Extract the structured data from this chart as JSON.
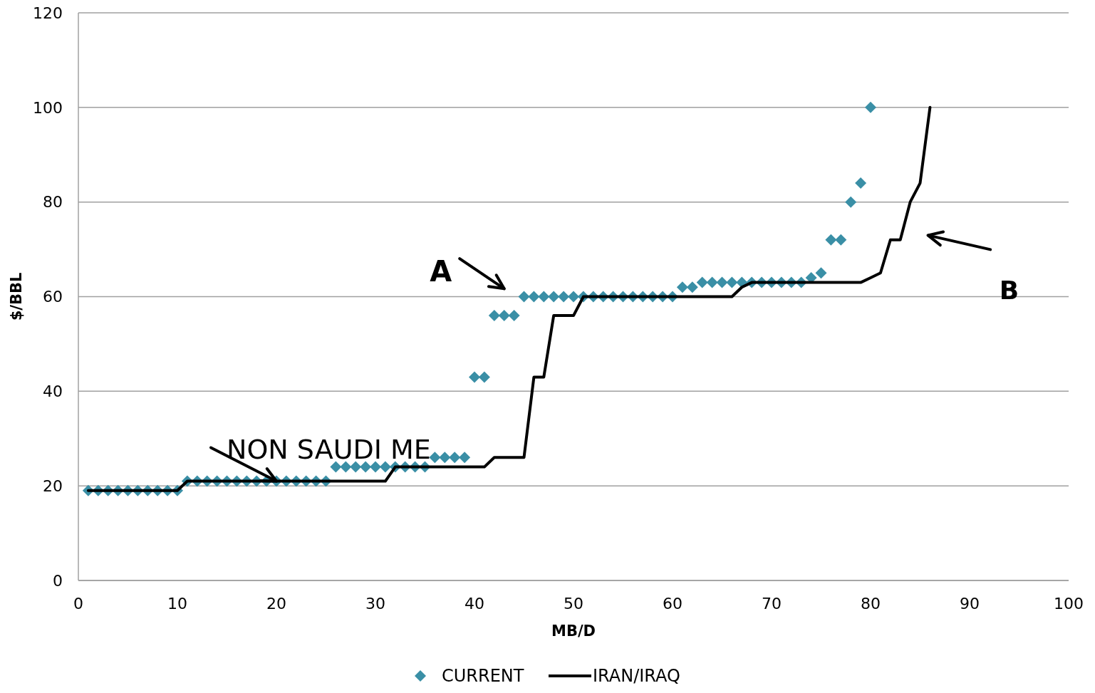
{
  "chart_data": {
    "type": "scatter",
    "xlabel": "MB/D",
    "ylabel": "$/BBL",
    "xlim": [
      0,
      100
    ],
    "xticks": [
      0,
      10,
      20,
      30,
      40,
      50,
      60,
      70,
      80,
      90,
      100
    ],
    "ylim": [
      0,
      120
    ],
    "yticks": [
      0,
      20,
      40,
      60,
      80,
      100,
      120
    ],
    "grid": "y",
    "legend": "bottom",
    "marker": "diamond",
    "series": [
      {
        "name": "CURRENT",
        "color": "#3a8fa6",
        "x": [
          1,
          2,
          3,
          4,
          5,
          6,
          7,
          8,
          9,
          10,
          11,
          12,
          13,
          14,
          15,
          16,
          17,
          18,
          19,
          20,
          21,
          22,
          23,
          24,
          25,
          26,
          27,
          28,
          29,
          30,
          31,
          32,
          33,
          34,
          35,
          36,
          37,
          38,
          39,
          40,
          41,
          42,
          43,
          44,
          45,
          46,
          47,
          48,
          49,
          50,
          51,
          52,
          53,
          54,
          55,
          56,
          57,
          58,
          59,
          60,
          61,
          62,
          63,
          64,
          65,
          66,
          67,
          68,
          69,
          70,
          71,
          72,
          73,
          74,
          75,
          76,
          77,
          78,
          79,
          80
        ],
        "values": [
          19,
          19,
          19,
          19,
          19,
          19,
          19,
          19,
          19,
          19,
          21,
          21,
          21,
          21,
          21,
          21,
          21,
          21,
          21,
          21,
          21,
          21,
          21,
          21,
          21,
          24,
          24,
          24,
          24,
          24,
          24,
          24,
          24,
          24,
          24,
          26,
          26,
          26,
          26,
          43,
          43,
          56,
          56,
          56,
          60,
          60,
          60,
          60,
          60,
          60,
          60,
          60,
          60,
          60,
          60,
          60,
          60,
          60,
          60,
          60,
          62,
          62,
          63,
          63,
          63,
          63,
          63,
          63,
          63,
          63,
          63,
          63,
          63,
          64,
          65,
          72,
          72,
          80,
          84,
          100
        ]
      },
      {
        "name": "IRAN/IRAQ",
        "type": "line",
        "color": "#000000",
        "marker": "none",
        "line_style": "solid",
        "x": [
          1,
          2,
          3,
          4,
          5,
          6,
          7,
          8,
          9,
          10,
          11,
          12,
          13,
          14,
          15,
          16,
          17,
          18,
          19,
          20,
          21,
          22,
          23,
          24,
          25,
          26,
          27,
          28,
          29,
          30,
          31,
          32,
          33,
          34,
          35,
          36,
          37,
          38,
          39,
          40,
          41,
          42,
          43,
          44,
          45,
          46,
          47,
          48,
          49,
          50,
          51,
          52,
          53,
          54,
          55,
          56,
          57,
          58,
          59,
          60,
          61,
          62,
          63,
          64,
          65,
          66,
          67,
          68,
          69,
          70,
          71,
          72,
          73,
          74,
          75,
          76,
          77,
          78,
          79,
          80,
          81,
          82,
          83,
          84,
          85,
          86
        ],
        "values": [
          19,
          19,
          19,
          19,
          19,
          19,
          19,
          19,
          19,
          19,
          21,
          21,
          21,
          21,
          21,
          21,
          21,
          21,
          21,
          21,
          21,
          21,
          21,
          21,
          21,
          21,
          21,
          21,
          21,
          21,
          21,
          24,
          24,
          24,
          24,
          24,
          24,
          24,
          24,
          24,
          24,
          26,
          26,
          26,
          26,
          43,
          43,
          56,
          56,
          56,
          60,
          60,
          60,
          60,
          60,
          60,
          60,
          60,
          60,
          60,
          60,
          60,
          60,
          60,
          60,
          60,
          62,
          63,
          63,
          63,
          63,
          63,
          63,
          63,
          63,
          63,
          63,
          63,
          63,
          64,
          65,
          72,
          72,
          80,
          84,
          100
        ]
      }
    ],
    "annotations": [
      {
        "text": "NON SAUDI ME",
        "x": 20,
        "y": 21
      },
      "A",
      "B"
    ]
  }
}
